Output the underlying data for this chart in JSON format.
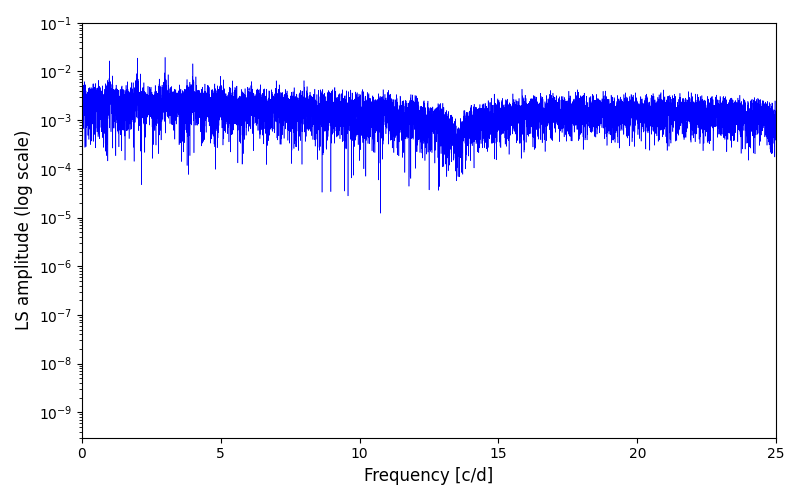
{
  "xlabel": "Frequency [c/d]",
  "ylabel": "LS amplitude (log scale)",
  "line_color": "#0000ff",
  "xlim": [
    0,
    25
  ],
  "ylim": [
    3e-10,
    0.1
  ],
  "freq_min": 0.0,
  "freq_max": 25.0,
  "n_points": 10000,
  "background_color": "#ffffff",
  "fig_width": 8.0,
  "fig_height": 5.0,
  "dpi": 100,
  "seed": 42
}
